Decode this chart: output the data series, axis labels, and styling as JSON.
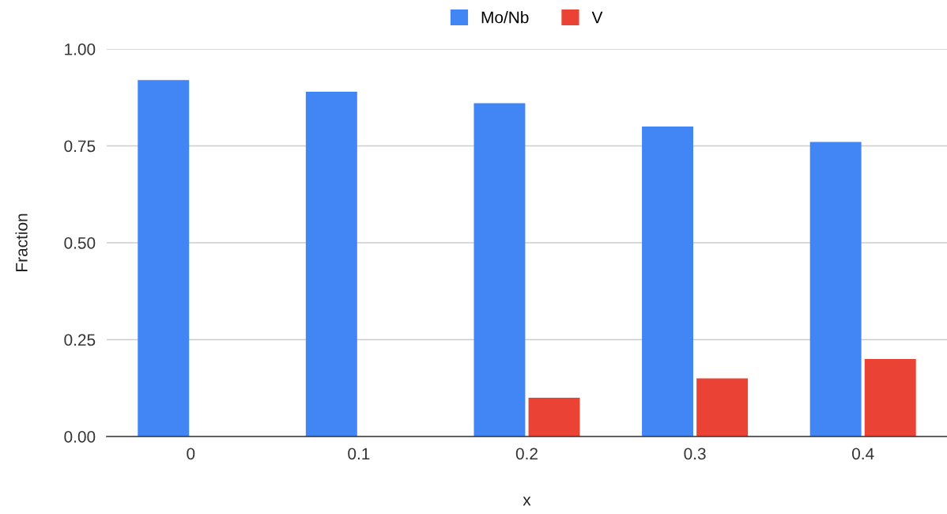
{
  "chart_data": {
    "type": "bar",
    "xlabel": "x",
    "ylabel": "Fraction",
    "categories": [
      "0",
      "0.1",
      "0.2",
      "0.3",
      "0.4"
    ],
    "series": [
      {
        "name": "Mo/Nb",
        "color": "#4285f4",
        "values": [
          0.92,
          0.89,
          0.86,
          0.8,
          0.76
        ]
      },
      {
        "name": "V",
        "color": "#ea4335",
        "values": [
          0,
          0,
          0.1,
          0.15,
          0.2
        ]
      }
    ],
    "ylim": [
      0,
      1
    ],
    "yticks": [
      {
        "value": 0,
        "label": "0.00"
      },
      {
        "value": 0.25,
        "label": "0.25"
      },
      {
        "value": 0.5,
        "label": "0.50"
      },
      {
        "value": 0.75,
        "label": "0.75"
      },
      {
        "value": 1,
        "label": "1.00"
      }
    ],
    "grid": "y",
    "legend": "top"
  }
}
